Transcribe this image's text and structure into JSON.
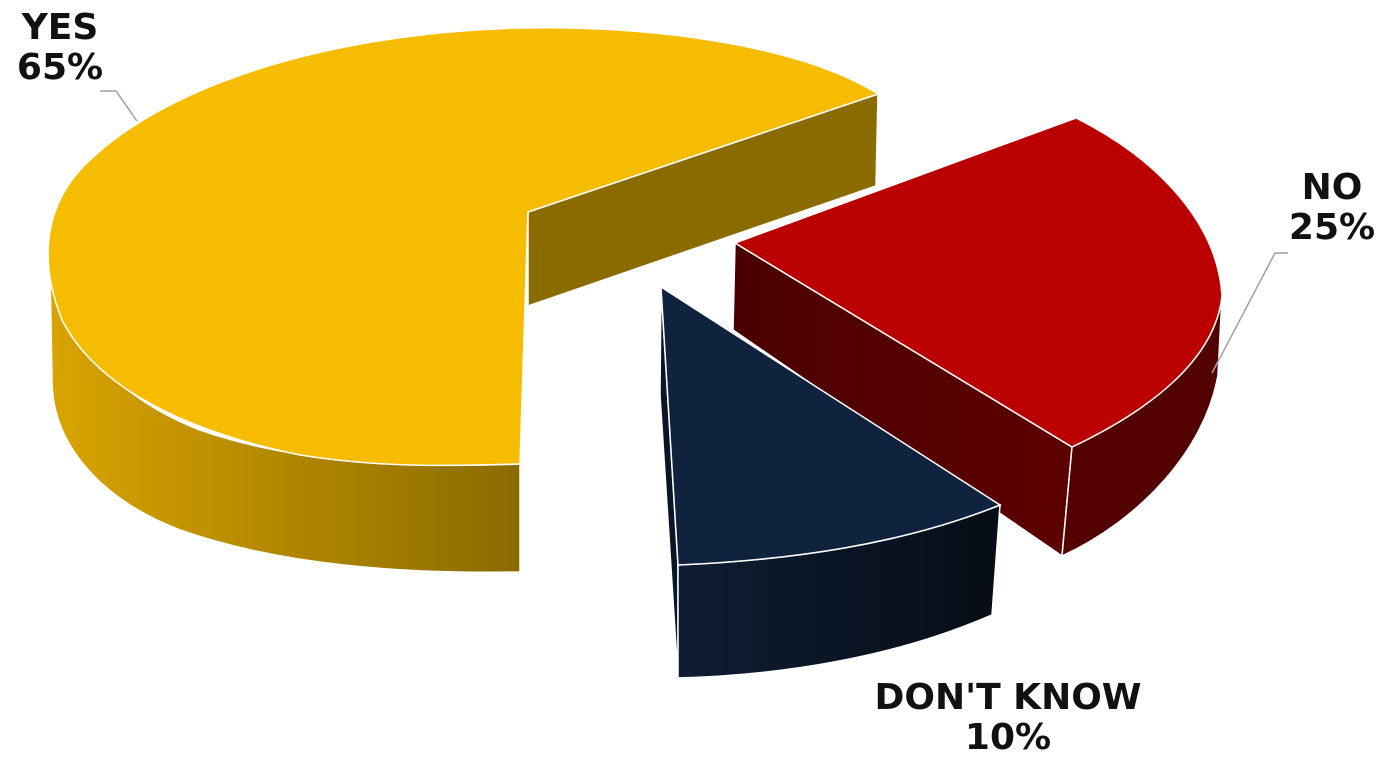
{
  "chart_data": {
    "type": "pie",
    "title": "",
    "categories": [
      "YES",
      "NO",
      "DON'T KNOW"
    ],
    "values": [
      65,
      25,
      10
    ],
    "data_labels": [
      {
        "category": "YES",
        "value": "65%"
      },
      {
        "category": "NO",
        "value": "25%"
      },
      {
        "category": "DON'T KNOW",
        "value": "10%"
      }
    ],
    "colors": [
      "#f5bc00",
      "#bb0000",
      "#0f223e"
    ],
    "side_colors": [
      "#8d6e00",
      "#5a0000",
      "#08121f"
    ],
    "style": "3d-exploded",
    "legend": "none"
  }
}
